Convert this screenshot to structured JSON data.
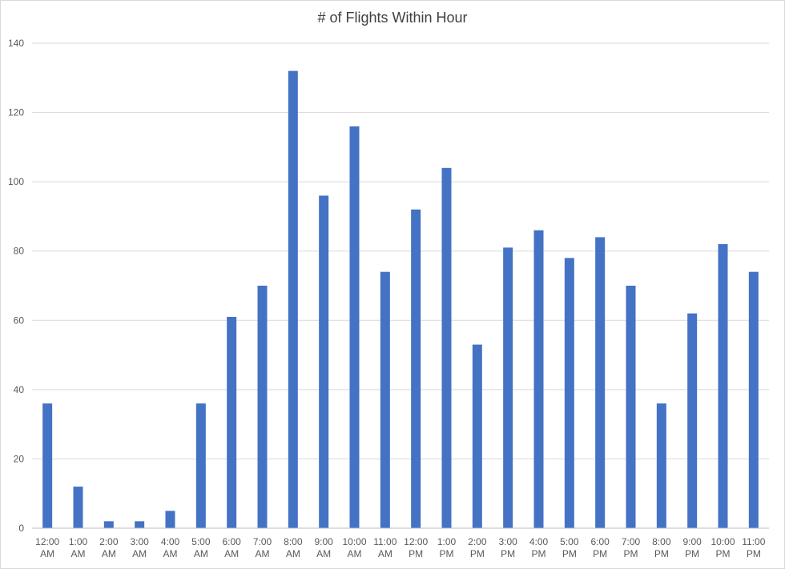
{
  "chart_data": {
    "type": "bar",
    "title": "# of Flights Within Hour",
    "xlabel": "",
    "ylabel": "",
    "ylim": [
      0,
      140
    ],
    "yticks": [
      0,
      20,
      40,
      60,
      80,
      100,
      120,
      140
    ],
    "grid": true,
    "categories": [
      [
        "12:00",
        "AM"
      ],
      [
        "1:00",
        "AM"
      ],
      [
        "2:00",
        "AM"
      ],
      [
        "3:00",
        "AM"
      ],
      [
        "4:00",
        "AM"
      ],
      [
        "5:00",
        "AM"
      ],
      [
        "6:00",
        "AM"
      ],
      [
        "7:00",
        "AM"
      ],
      [
        "8:00",
        "AM"
      ],
      [
        "9:00",
        "AM"
      ],
      [
        "10:00",
        "AM"
      ],
      [
        "11:00",
        "AM"
      ],
      [
        "12:00",
        "PM"
      ],
      [
        "1:00",
        "PM"
      ],
      [
        "2:00",
        "PM"
      ],
      [
        "3:00",
        "PM"
      ],
      [
        "4:00",
        "PM"
      ],
      [
        "5:00",
        "PM"
      ],
      [
        "6:00",
        "PM"
      ],
      [
        "7:00",
        "PM"
      ],
      [
        "8:00",
        "PM"
      ],
      [
        "9:00",
        "PM"
      ],
      [
        "10:00",
        "PM"
      ],
      [
        "11:00",
        "PM"
      ]
    ],
    "values": [
      36,
      12,
      2,
      2,
      5,
      36,
      61,
      70,
      132,
      96,
      116,
      74,
      92,
      104,
      53,
      81,
      86,
      78,
      84,
      70,
      36,
      62,
      82,
      74
    ],
    "colors": {
      "bar": "#4472c4",
      "gridline": "#d9d9d9",
      "axis": "#bfbfbf",
      "text": "#595959"
    }
  }
}
